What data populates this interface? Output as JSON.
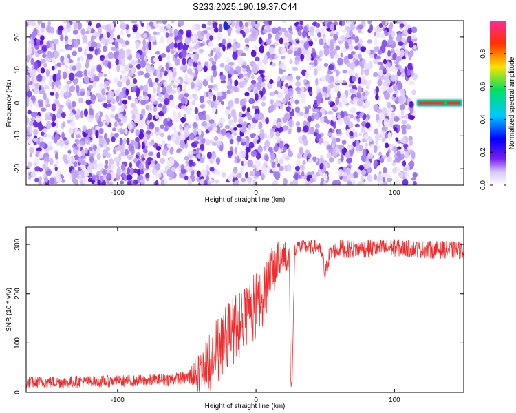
{
  "title": "S233.2025.190.19.37.C44",
  "chart_data": [
    {
      "type": "heatmap",
      "xlabel": "Height of straight line (km)",
      "ylabel": "Frequency (Hz)",
      "xlim": [
        -166,
        150
      ],
      "ylim": [
        -25,
        25
      ],
      "xticks": [
        -100,
        0,
        100
      ],
      "yticks": [
        -20,
        -10,
        0,
        10,
        20
      ],
      "colorbar": {
        "label": "Normalized spectral amplitude",
        "range": [
          0,
          1
        ],
        "ticks": [
          "0.0",
          "0.2",
          "0.4",
          "0.6",
          "0.8"
        ],
        "colors": [
          "#ffffff",
          "#d8c8f8",
          "#7a1ff0",
          "#0000ff",
          "#00c8ff",
          "#00e060",
          "#ffe000",
          "#ff3000",
          "#ff2a9a"
        ]
      },
      "features": [
        {
          "label": "broadband noise",
          "x_range": [
            -166,
            115
          ],
          "f_range": [
            -25,
            25
          ],
          "amplitude_range": [
            0.0,
            0.25
          ]
        },
        {
          "label": "narrowband line",
          "x_range": [
            117,
            148
          ],
          "frequency": 0,
          "amplitude": 0.95
        },
        {
          "label": "gap",
          "x": -22
        },
        {
          "label": "gap",
          "x": 27
        },
        {
          "label": "gap",
          "x": 85
        },
        {
          "label": "spot",
          "x": -22,
          "frequency": 23.5,
          "amplitude": 0.3
        }
      ]
    },
    {
      "type": "line",
      "xlabel": "Height of straight line (km)",
      "ylabel": "SNR (10 * v/v)",
      "xlim": [
        -166,
        150
      ],
      "ylim": [
        0,
        335
      ],
      "xticks": [
        -100,
        0,
        100
      ],
      "yticks": [
        0,
        100,
        200,
        300
      ],
      "color": "#ee2e2e",
      "series": [
        {
          "x": [
            -166,
            -120,
            -80,
            -50,
            -40,
            -30,
            -20,
            -10,
            0,
            5,
            10,
            15,
            20,
            24,
            25,
            26,
            28,
            30,
            35,
            40,
            45,
            48,
            50,
            52,
            55,
            60,
            70,
            80,
            100,
            120,
            150
          ],
          "y": [
            20,
            22,
            24,
            28,
            45,
            90,
            130,
            160,
            190,
            215,
            245,
            265,
            285,
            270,
            15,
            15,
            290,
            295,
            295,
            295,
            295,
            275,
            235,
            270,
            285,
            292,
            290,
            292,
            293,
            290,
            288
          ],
          "spread": [
            12,
            12,
            12,
            14,
            40,
            55,
            55,
            55,
            55,
            50,
            45,
            40,
            30,
            30,
            10,
            10,
            15,
            15,
            15,
            15,
            15,
            15,
            20,
            20,
            18,
            18,
            18,
            18,
            18,
            18,
            18
          ]
        }
      ]
    }
  ]
}
